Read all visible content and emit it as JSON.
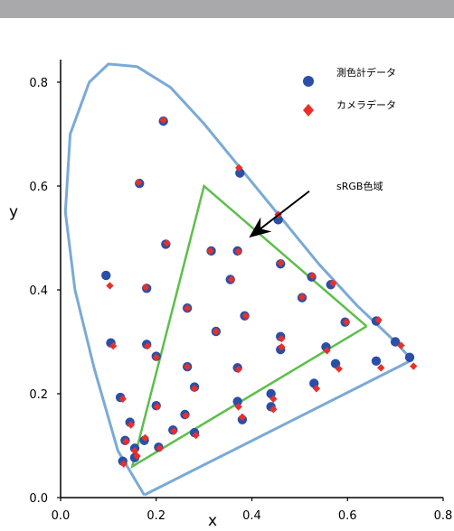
{
  "chart_data": {
    "type": "scatter",
    "xlabel": "x",
    "ylabel": "y",
    "xlim": [
      0.0,
      0.8
    ],
    "ylim": [
      0.0,
      0.85
    ],
    "x_ticks": [
      "0.0",
      "0.2",
      "0.4",
      "0.6",
      "0.8"
    ],
    "y_ticks": [
      "0.0",
      "0.2",
      "0.4",
      "0.6",
      "0.8"
    ],
    "grid": false,
    "legend_position": "top-right",
    "colors": {
      "locus": "#7aaad6",
      "gamut": "#5cbf4a",
      "meter": "#2a4fa8",
      "camera": "#e8302a"
    },
    "locus": [
      [
        0.175,
        0.005
      ],
      [
        0.12,
        0.09
      ],
      [
        0.07,
        0.25
      ],
      [
        0.03,
        0.4
      ],
      [
        0.01,
        0.55
      ],
      [
        0.02,
        0.7
      ],
      [
        0.06,
        0.8
      ],
      [
        0.1,
        0.835
      ],
      [
        0.16,
        0.83
      ],
      [
        0.23,
        0.79
      ],
      [
        0.3,
        0.72
      ],
      [
        0.38,
        0.63
      ],
      [
        0.46,
        0.54
      ],
      [
        0.54,
        0.45
      ],
      [
        0.62,
        0.37
      ],
      [
        0.7,
        0.3
      ],
      [
        0.735,
        0.265
      ],
      [
        0.175,
        0.005
      ]
    ],
    "gamut": [
      [
        0.64,
        0.33
      ],
      [
        0.3,
        0.6
      ],
      [
        0.15,
        0.06
      ],
      [
        0.64,
        0.33
      ]
    ],
    "annotation": {
      "text": "sRGB色域",
      "tail": [
        0.52,
        0.59
      ],
      "head": [
        0.4,
        0.505
      ]
    },
    "series": [
      {
        "name": "測色計データ",
        "marker": "circle",
        "points": [
          [
            0.215,
            0.725
          ],
          [
            0.375,
            0.625
          ],
          [
            0.165,
            0.605
          ],
          [
            0.455,
            0.535
          ],
          [
            0.22,
            0.488
          ],
          [
            0.095,
            0.428
          ],
          [
            0.315,
            0.475
          ],
          [
            0.37,
            0.475
          ],
          [
            0.46,
            0.45
          ],
          [
            0.18,
            0.403
          ],
          [
            0.355,
            0.42
          ],
          [
            0.525,
            0.425
          ],
          [
            0.565,
            0.41
          ],
          [
            0.265,
            0.365
          ],
          [
            0.385,
            0.35
          ],
          [
            0.505,
            0.385
          ],
          [
            0.595,
            0.338
          ],
          [
            0.66,
            0.34
          ],
          [
            0.105,
            0.298
          ],
          [
            0.18,
            0.295
          ],
          [
            0.325,
            0.32
          ],
          [
            0.46,
            0.31
          ],
          [
            0.2,
            0.272
          ],
          [
            0.46,
            0.285
          ],
          [
            0.555,
            0.29
          ],
          [
            0.7,
            0.3
          ],
          [
            0.73,
            0.27
          ],
          [
            0.265,
            0.252
          ],
          [
            0.37,
            0.25
          ],
          [
            0.575,
            0.258
          ],
          [
            0.66,
            0.263
          ],
          [
            0.125,
            0.193
          ],
          [
            0.28,
            0.213
          ],
          [
            0.44,
            0.2
          ],
          [
            0.37,
            0.185
          ],
          [
            0.53,
            0.22
          ],
          [
            0.2,
            0.177
          ],
          [
            0.44,
            0.175
          ],
          [
            0.26,
            0.16
          ],
          [
            0.38,
            0.15
          ],
          [
            0.145,
            0.145
          ],
          [
            0.235,
            0.13
          ],
          [
            0.28,
            0.125
          ],
          [
            0.135,
            0.11
          ],
          [
            0.175,
            0.11
          ],
          [
            0.155,
            0.095
          ],
          [
            0.205,
            0.097
          ],
          [
            0.155,
            0.077
          ],
          [
            0.13,
            0.07
          ]
        ]
      },
      {
        "name": "カメラデータ",
        "marker": "diamond",
        "points": [
          [
            0.215,
            0.727
          ],
          [
            0.373,
            0.635
          ],
          [
            0.163,
            0.607
          ],
          [
            0.455,
            0.545
          ],
          [
            0.222,
            0.49
          ],
          [
            0.103,
            0.408
          ],
          [
            0.313,
            0.475
          ],
          [
            0.372,
            0.474
          ],
          [
            0.46,
            0.452
          ],
          [
            0.178,
            0.405
          ],
          [
            0.357,
            0.42
          ],
          [
            0.527,
            0.427
          ],
          [
            0.57,
            0.413
          ],
          [
            0.265,
            0.365
          ],
          [
            0.387,
            0.35
          ],
          [
            0.505,
            0.386
          ],
          [
            0.598,
            0.338
          ],
          [
            0.665,
            0.342
          ],
          [
            0.11,
            0.292
          ],
          [
            0.182,
            0.292
          ],
          [
            0.325,
            0.32
          ],
          [
            0.462,
            0.306
          ],
          [
            0.2,
            0.27
          ],
          [
            0.462,
            0.29
          ],
          [
            0.557,
            0.283
          ],
          [
            0.712,
            0.293
          ],
          [
            0.738,
            0.253
          ],
          [
            0.265,
            0.252
          ],
          [
            0.372,
            0.247
          ],
          [
            0.582,
            0.248
          ],
          [
            0.67,
            0.25
          ],
          [
            0.13,
            0.19
          ],
          [
            0.28,
            0.21
          ],
          [
            0.445,
            0.19
          ],
          [
            0.372,
            0.175
          ],
          [
            0.535,
            0.21
          ],
          [
            0.202,
            0.175
          ],
          [
            0.445,
            0.17
          ],
          [
            0.262,
            0.158
          ],
          [
            0.38,
            0.155
          ],
          [
            0.147,
            0.14
          ],
          [
            0.237,
            0.128
          ],
          [
            0.283,
            0.12
          ],
          [
            0.137,
            0.108
          ],
          [
            0.177,
            0.115
          ],
          [
            0.155,
            0.09
          ],
          [
            0.207,
            0.095
          ],
          [
            0.16,
            0.08
          ],
          [
            0.132,
            0.065
          ]
        ]
      }
    ]
  }
}
